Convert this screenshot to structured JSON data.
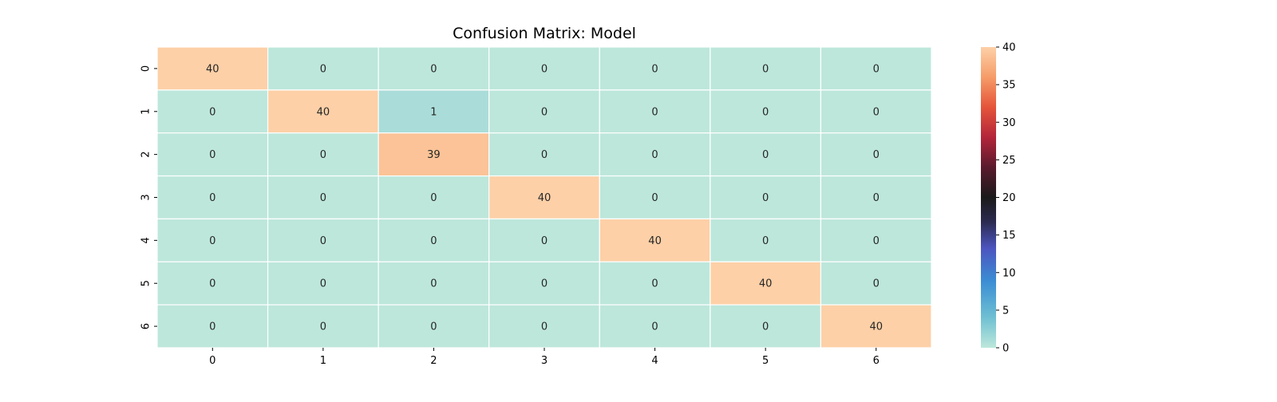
{
  "chart_data": {
    "type": "heatmap",
    "title": "Confusion Matrix: Model",
    "xlabel": "",
    "ylabel": "",
    "x_categories": [
      "0",
      "1",
      "2",
      "3",
      "4",
      "5",
      "6"
    ],
    "y_categories": [
      "0",
      "1",
      "2",
      "3",
      "4",
      "5",
      "6"
    ],
    "matrix": [
      [
        40,
        0,
        0,
        0,
        0,
        0,
        0
      ],
      [
        0,
        40,
        1,
        0,
        0,
        0,
        0
      ],
      [
        0,
        0,
        39,
        0,
        0,
        0,
        0
      ],
      [
        0,
        0,
        0,
        40,
        0,
        0,
        0
      ],
      [
        0,
        0,
        0,
        0,
        40,
        0,
        0
      ],
      [
        0,
        0,
        0,
        0,
        0,
        40,
        0
      ],
      [
        0,
        0,
        0,
        0,
        0,
        0,
        40
      ]
    ],
    "annotated": true,
    "colormap": "icefire",
    "vmin": 0,
    "vmax": 40,
    "colorbar": {
      "ticks": [
        0,
        5,
        10,
        15,
        20,
        25,
        30,
        35,
        40
      ],
      "labels": [
        "0",
        "5",
        "10",
        "15",
        "20",
        "25",
        "30",
        "35",
        "40"
      ],
      "placement": "right"
    },
    "grid_line_color": "#ffffff",
    "annotation_color": "#262626"
  }
}
